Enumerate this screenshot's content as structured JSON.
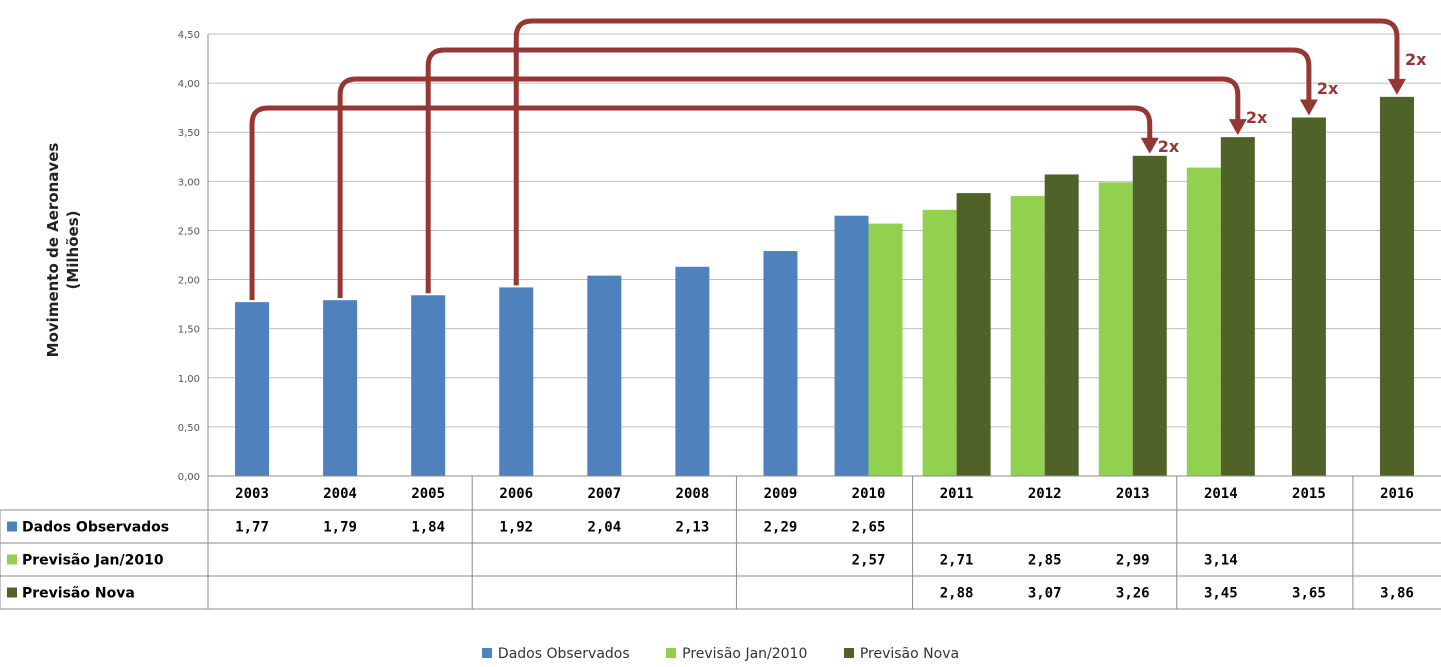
{
  "colors": {
    "observed": "#4f81bd",
    "forecast_jan2010": "#92d050",
    "forecast_new": "#4f6228",
    "arrow": "#953735",
    "grid": "#bfbfbf",
    "axis": "#8c8c8c"
  },
  "chart_data": {
    "type": "bar",
    "title": "",
    "ylabel": [
      "Movimento de Aeronaves",
      "(Milhões)"
    ],
    "xlabel": "",
    "ylim": [
      0,
      4.5
    ],
    "yticks": [
      "0,00",
      "0,50",
      "1,00",
      "1,50",
      "2,00",
      "2,50",
      "3,00",
      "3,50",
      "4,00",
      "4,50"
    ],
    "grid": true,
    "legend_position": "bottom",
    "categories": [
      "2003",
      "2004",
      "2005",
      "2006",
      "2007",
      "2008",
      "2009",
      "2010",
      "2011",
      "2012",
      "2013",
      "2014",
      "2015",
      "2016"
    ],
    "series": [
      {
        "name": "Dados Observados",
        "values": [
          1.77,
          1.79,
          1.84,
          1.92,
          2.04,
          2.13,
          2.29,
          2.65,
          null,
          null,
          null,
          null,
          null,
          null
        ],
        "labels": [
          "1,77",
          "1,79",
          "1,84",
          "1,92",
          "2,04",
          "2,13",
          "2,29",
          "2,65",
          "",
          "",
          "",
          "",
          "",
          ""
        ]
      },
      {
        "name": "Previsão Jan/2010",
        "values": [
          null,
          null,
          null,
          null,
          null,
          null,
          null,
          2.57,
          2.71,
          2.85,
          2.99,
          3.14,
          null,
          null
        ],
        "labels": [
          "",
          "",
          "",
          "",
          "",
          "",
          "",
          "2,57",
          "2,71",
          "2,85",
          "2,99",
          "3,14",
          "",
          ""
        ]
      },
      {
        "name": "Previsão Nova",
        "values": [
          null,
          null,
          null,
          null,
          null,
          null,
          null,
          null,
          2.88,
          3.07,
          3.26,
          3.45,
          3.65,
          3.86
        ],
        "labels": [
          "",
          "",
          "",
          "",
          "",
          "",
          "",
          "",
          "2,88",
          "3,07",
          "3,26",
          "3,45",
          "3,65",
          "3,86"
        ]
      }
    ],
    "annotations": [
      {
        "from": "2003",
        "to": "2013",
        "label": "2x"
      },
      {
        "from": "2004",
        "to": "2014",
        "label": "2x"
      },
      {
        "from": "2005",
        "to": "2015",
        "label": "2x"
      },
      {
        "from": "2006",
        "to": "2016",
        "label": "2x"
      }
    ]
  }
}
